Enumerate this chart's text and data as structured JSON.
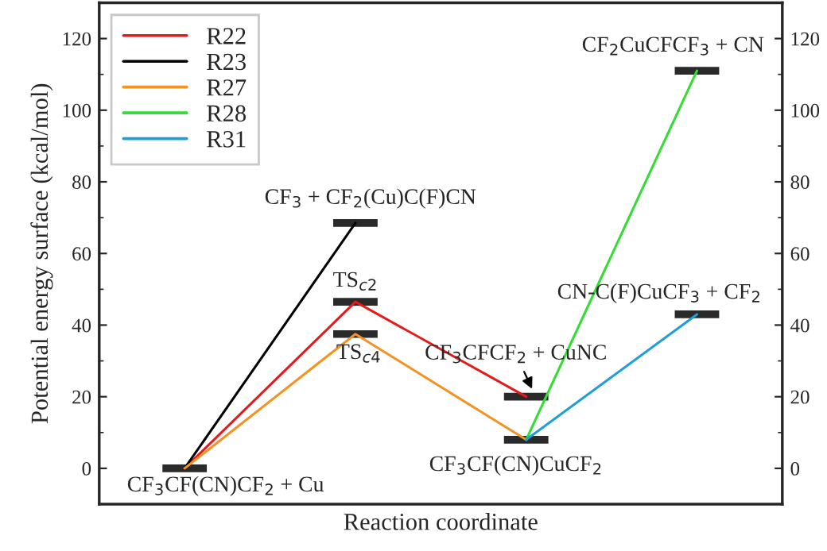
{
  "chart_data": {
    "type": "line",
    "xlabel": "Reaction coordinate",
    "ylabel": "Potential energy surface (kcal/mol)",
    "categories": [
      null,
      null,
      null,
      null
    ],
    "series": [
      {
        "name": "R22",
        "color": "#e41a1c",
        "values": [
          0,
          46.5,
          20,
          null
        ]
      },
      {
        "name": "R23",
        "color": "#000000",
        "values": [
          0,
          68.5,
          null,
          null
        ]
      },
      {
        "name": "R27",
        "color": "#f39323",
        "values": [
          0,
          37.5,
          8,
          null
        ]
      },
      {
        "name": "R28",
        "color": "#33dd33",
        "values": [
          null,
          null,
          8,
          111
        ]
      },
      {
        "name": "R31",
        "color": "#1f9fd5",
        "values": [
          null,
          null,
          8,
          43
        ]
      }
    ],
    "ylim": [
      -10,
      130
    ],
    "yticks": [
      0,
      20,
      40,
      60,
      80,
      100,
      120
    ],
    "y2lim": [
      -10,
      130
    ],
    "y2ticks": [
      0,
      20,
      40,
      60,
      80,
      100,
      120
    ],
    "legend": "top left",
    "marker": "none",
    "line_style": "solid",
    "grid": false,
    "annotations": [
      "CF$_{3}$CF(CN)CF$_{2}$ + Cu",
      "CF$_{3}$ + CF$_{2}$(Cu)C(F)CN",
      "TS$_{c2}$",
      "TS$_{c4}$",
      "CF$_{3}$CFCF$_{2}$ + CuNC",
      "CF$_{3}$CF(CN)CuCF$_{2}$",
      "CF$_{2}$CuCFCF$_{3}$ + CN",
      "CN-C(F)CuCF$_{3}$ + CF$_{2}$"
    ]
  }
}
